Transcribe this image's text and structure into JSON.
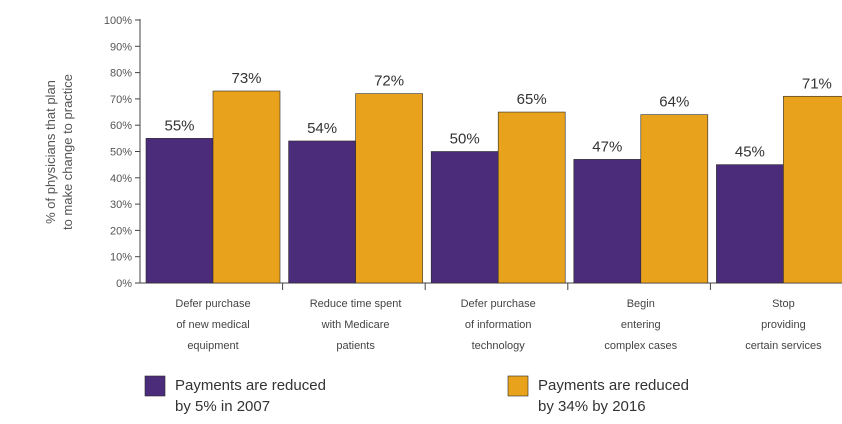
{
  "chart_data": {
    "type": "bar",
    "categories": [
      [
        "Defer purchase",
        "of new medical",
        "equipment"
      ],
      [
        "Reduce time spent",
        "with Medicare",
        "patients"
      ],
      [
        "Defer purchase",
        "of information",
        "technology"
      ],
      [
        "Begin",
        "entering",
        "complex cases"
      ],
      [
        "Stop",
        "providing",
        "certain services"
      ]
    ],
    "series": [
      {
        "name": [
          "Payments are reduced",
          "by 5% in 2007"
        ],
        "values": [
          55,
          54,
          50,
          47,
          45
        ],
        "labels": [
          "55%",
          "54%",
          "50%",
          "47%",
          "45%"
        ],
        "color": "#4B2C7A"
      },
      {
        "name": [
          "Payments are reduced",
          "by 34% by 2016"
        ],
        "values": [
          73,
          72,
          65,
          64,
          71
        ],
        "labels": [
          "73%",
          "72%",
          "65%",
          "64%",
          "71%"
        ],
        "color": "#E8A21C"
      }
    ],
    "ylabel": [
      "% of physicians that plan",
      "to make change to practice"
    ],
    "ylim": [
      0,
      100
    ],
    "yticks": [
      "0%",
      "10%",
      "20%",
      "30%",
      "40%",
      "50%",
      "60%",
      "70%",
      "80%",
      "90%",
      "100%"
    ],
    "legend_position": "bottom"
  }
}
